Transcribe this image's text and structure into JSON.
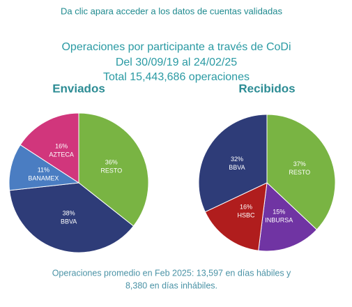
{
  "header": {
    "link": "Da clic apara acceder a los datos de cuentas validadas",
    "title": "Operaciones por participante a través de CoDi",
    "period": "Del 30/09/19 al 24/02/25",
    "total": "Total 15,443,686 operaciones"
  },
  "chart_data": [
    {
      "type": "pie",
      "title": "Enviados",
      "categories": [
        "RESTO",
        "BBVA",
        "BANAMEX",
        "AZTECA"
      ],
      "values": [
        36,
        38,
        11,
        16
      ],
      "value_labels": [
        "36%",
        "38%",
        "11%",
        "16%"
      ],
      "colors": [
        "#79b443",
        "#2e3c78",
        "#4a7dc2",
        "#d1367c"
      ]
    },
    {
      "type": "pie",
      "title": "Recibidos",
      "categories": [
        "RESTO",
        "INBURSA",
        "HSBC",
        "BBVA"
      ],
      "values": [
        37,
        15,
        16,
        32
      ],
      "value_labels": [
        "37%",
        "15%",
        "16%",
        "32%"
      ],
      "colors": [
        "#79b443",
        "#7034a3",
        "#b01d1d",
        "#2e3c78"
      ]
    }
  ],
  "footer": [
    "Operaciones promedio en Feb 2025: 13,597 en días hábiles y",
    "8,380 en días inhábiles."
  ]
}
